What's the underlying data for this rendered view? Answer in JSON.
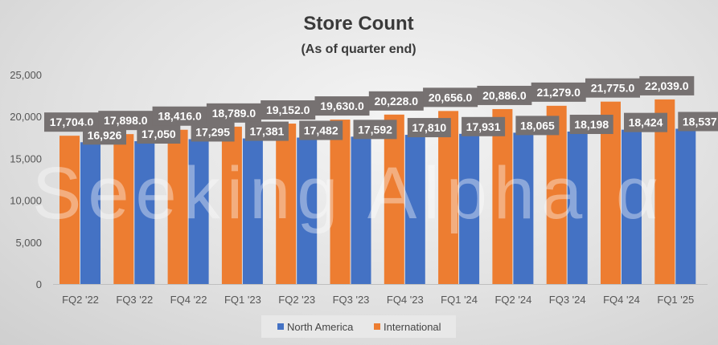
{
  "chart_data": {
    "type": "bar",
    "title": "Store Count",
    "subtitle": "(As of quarter end)",
    "categories": [
      "FQ2 '22",
      "FQ3 '22",
      "FQ4 '22",
      "FQ1 '23",
      "FQ2 '23",
      "FQ3 '23",
      "FQ4 '23",
      "FQ1 '24",
      "FQ2 '24",
      "FQ3 '24",
      "FQ4 '24",
      "FQ1 '25"
    ],
    "series": [
      {
        "name": "North America",
        "color": "#4472C4",
        "values": [
          16926,
          17050,
          17295,
          17381,
          17482,
          17592,
          17810,
          17931,
          18065,
          18198,
          18424,
          18537
        ],
        "labels": [
          "16,926",
          "17,050",
          "17,295",
          "17,381",
          "17,482",
          "17,592",
          "17,810",
          "17,931",
          "18,065",
          "18,198",
          "18,424",
          "18,537"
        ]
      },
      {
        "name": "International",
        "color": "#ED7D31",
        "values": [
          17704,
          17898,
          18416,
          18789,
          19152,
          19630,
          20228,
          20656,
          20886,
          21279,
          21775,
          22039
        ],
        "labels": [
          "17,704.0",
          "17,898.0",
          "18,416.0",
          "18,789.0",
          "19,152.0",
          "19,630.0",
          "20,228.0",
          "20,656.0",
          "20,886.0",
          "21,279.0",
          "21,775.0",
          "22,039.0"
        ]
      }
    ],
    "ylim": [
      0,
      25000
    ],
    "yticks": [
      "0",
      "5,000",
      "10,000",
      "15,000",
      "20,000",
      "25,000"
    ],
    "ytick_values": [
      0,
      5000,
      10000,
      15000,
      20000,
      25000
    ],
    "grid": false,
    "legend": "bottom",
    "label_box_color": "#767171",
    "watermark": "Seeking Alpha α"
  }
}
